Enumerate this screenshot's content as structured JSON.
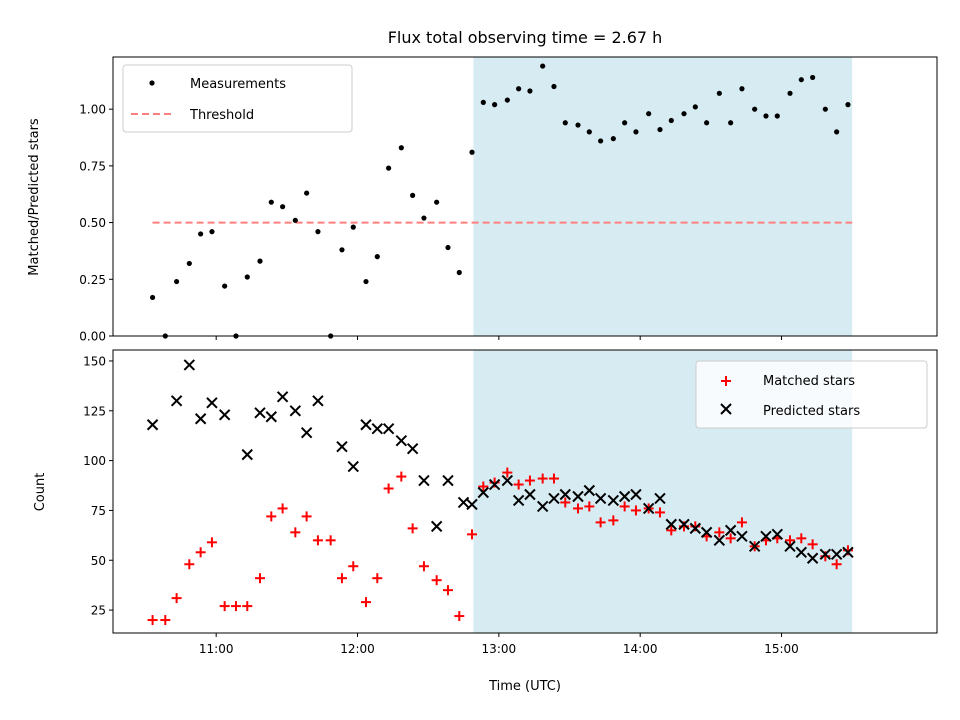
{
  "title": "Flux total observing time = 2.67 h",
  "colors": {
    "shade": "#add8e6",
    "red": "#ff0000",
    "black": "#000000",
    "threshold": "#ff7f7f"
  },
  "chart_data": [
    {
      "type": "scatter",
      "ylabel": "Matched/Predicted stars",
      "ylim": [
        0,
        1.23
      ],
      "yticks": [
        "0.00",
        "0.25",
        "0.50",
        "0.75",
        "1.00"
      ],
      "xlim": [
        10.27,
        16.1
      ],
      "shaded_region": [
        12.82,
        15.5
      ],
      "legend": {
        "placement": "top-left",
        "entries": [
          "Measurements",
          "Threshold"
        ]
      },
      "threshold": {
        "name": "Threshold",
        "x": [
          10.55,
          15.5
        ],
        "y": 0.5,
        "style": "dashed"
      },
      "series": [
        {
          "name": "Measurements",
          "marker": "dot",
          "points": [
            [
              10.55,
              0.17
            ],
            [
              10.64,
              0.0
            ],
            [
              10.72,
              0.24
            ],
            [
              10.81,
              0.32
            ],
            [
              10.89,
              0.45
            ],
            [
              10.97,
              0.46
            ],
            [
              11.06,
              0.22
            ],
            [
              11.14,
              0.0
            ],
            [
              11.22,
              0.26
            ],
            [
              11.31,
              0.33
            ],
            [
              11.39,
              0.59
            ],
            [
              11.47,
              0.57
            ],
            [
              11.56,
              0.51
            ],
            [
              11.64,
              0.63
            ],
            [
              11.72,
              0.46
            ],
            [
              11.81,
              0.0
            ],
            [
              11.89,
              0.38
            ],
            [
              11.97,
              0.48
            ],
            [
              12.06,
              0.24
            ],
            [
              12.14,
              0.35
            ],
            [
              12.22,
              0.74
            ],
            [
              12.31,
              0.83
            ],
            [
              12.39,
              0.62
            ],
            [
              12.47,
              0.52
            ],
            [
              12.56,
              0.59
            ],
            [
              12.64,
              0.39
            ],
            [
              12.72,
              0.28
            ],
            [
              12.81,
              0.81
            ],
            [
              12.89,
              1.03
            ],
            [
              12.97,
              1.02
            ],
            [
              13.06,
              1.04
            ],
            [
              13.14,
              1.09
            ],
            [
              13.22,
              1.08
            ],
            [
              13.31,
              1.19
            ],
            [
              13.39,
              1.1
            ],
            [
              13.47,
              0.94
            ],
            [
              13.56,
              0.93
            ],
            [
              13.64,
              0.9
            ],
            [
              13.72,
              0.86
            ],
            [
              13.81,
              0.87
            ],
            [
              13.89,
              0.94
            ],
            [
              13.97,
              0.9
            ],
            [
              14.06,
              0.98
            ],
            [
              14.14,
              0.91
            ],
            [
              14.22,
              0.95
            ],
            [
              14.31,
              0.98
            ],
            [
              14.39,
              1.01
            ],
            [
              14.47,
              0.94
            ],
            [
              14.56,
              1.07
            ],
            [
              14.64,
              0.94
            ],
            [
              14.72,
              1.09
            ],
            [
              14.81,
              1.0
            ],
            [
              14.89,
              0.97
            ],
            [
              14.97,
              0.97
            ],
            [
              15.06,
              1.07
            ],
            [
              15.14,
              1.13
            ],
            [
              15.22,
              1.14
            ],
            [
              15.31,
              1.0
            ],
            [
              15.39,
              0.9
            ],
            [
              15.47,
              1.02
            ]
          ]
        }
      ]
    },
    {
      "type": "scatter",
      "xlabel": "Time (UTC)",
      "ylabel": "Count",
      "ylim": [
        13.5,
        155.5
      ],
      "yticks": [
        "25",
        "50",
        "75",
        "100",
        "125",
        "150"
      ],
      "xlim": [
        10.27,
        16.1
      ],
      "xticks": [
        "11:00",
        "12:00",
        "13:00",
        "14:00",
        "15:00"
      ],
      "shaded_region": [
        12.82,
        15.5
      ],
      "legend": {
        "placement": "top-right",
        "entries": [
          "Matched stars",
          "Predicted stars"
        ]
      },
      "series": [
        {
          "name": "Matched stars",
          "marker": "plus",
          "points": [
            [
              10.55,
              20
            ],
            [
              10.64,
              20
            ],
            [
              10.72,
              31
            ],
            [
              10.81,
              48
            ],
            [
              10.89,
              54
            ],
            [
              10.97,
              59
            ],
            [
              11.06,
              27
            ],
            [
              11.14,
              27
            ],
            [
              11.22,
              27
            ],
            [
              11.31,
              41
            ],
            [
              11.39,
              72
            ],
            [
              11.47,
              76
            ],
            [
              11.56,
              64
            ],
            [
              11.64,
              72
            ],
            [
              11.72,
              60
            ],
            [
              11.81,
              60
            ],
            [
              11.89,
              41
            ],
            [
              11.97,
              47
            ],
            [
              12.06,
              29
            ],
            [
              12.14,
              41
            ],
            [
              12.22,
              86
            ],
            [
              12.31,
              92
            ],
            [
              12.39,
              66
            ],
            [
              12.47,
              47
            ],
            [
              12.56,
              40
            ],
            [
              12.64,
              35
            ],
            [
              12.72,
              22
            ],
            [
              12.81,
              63
            ],
            [
              12.89,
              87
            ],
            [
              12.97,
              89
            ],
            [
              13.06,
              94
            ],
            [
              13.14,
              88
            ],
            [
              13.22,
              90
            ],
            [
              13.31,
              91
            ],
            [
              13.39,
              91
            ],
            [
              13.47,
              79
            ],
            [
              13.56,
              76
            ],
            [
              13.64,
              77
            ],
            [
              13.72,
              69
            ],
            [
              13.81,
              70
            ],
            [
              13.89,
              77
            ],
            [
              13.97,
              75
            ],
            [
              14.06,
              76
            ],
            [
              14.14,
              74
            ],
            [
              14.22,
              65
            ],
            [
              14.31,
              67
            ],
            [
              14.39,
              67
            ],
            [
              14.47,
              62
            ],
            [
              14.56,
              64
            ],
            [
              14.64,
              61
            ],
            [
              14.72,
              69
            ],
            [
              14.81,
              57
            ],
            [
              14.89,
              60
            ],
            [
              14.97,
              61
            ],
            [
              15.06,
              60
            ],
            [
              15.14,
              61
            ],
            [
              15.22,
              58
            ],
            [
              15.31,
              52
            ],
            [
              15.39,
              48
            ],
            [
              15.47,
              55
            ]
          ]
        },
        {
          "name": "Predicted stars",
          "marker": "x",
          "points": [
            [
              10.55,
              118
            ],
            [
              10.72,
              130
            ],
            [
              10.81,
              148
            ],
            [
              10.89,
              121
            ],
            [
              10.97,
              129
            ],
            [
              11.06,
              123
            ],
            [
              11.22,
              103
            ],
            [
              11.31,
              124
            ],
            [
              11.39,
              122
            ],
            [
              11.47,
              132
            ],
            [
              11.56,
              125
            ],
            [
              11.64,
              114
            ],
            [
              11.72,
              130
            ],
            [
              11.89,
              107
            ],
            [
              11.97,
              97
            ],
            [
              12.06,
              118
            ],
            [
              12.14,
              116
            ],
            [
              12.22,
              116
            ],
            [
              12.31,
              110
            ],
            [
              12.39,
              106
            ],
            [
              12.47,
              90
            ],
            [
              12.56,
              67
            ],
            [
              12.64,
              90
            ],
            [
              12.75,
              79
            ],
            [
              12.81,
              78
            ],
            [
              12.89,
              84
            ],
            [
              12.97,
              88
            ],
            [
              13.06,
              90
            ],
            [
              13.14,
              80
            ],
            [
              13.22,
              83
            ],
            [
              13.31,
              77
            ],
            [
              13.39,
              81
            ],
            [
              13.47,
              83
            ],
            [
              13.56,
              82
            ],
            [
              13.64,
              85
            ],
            [
              13.72,
              81
            ],
            [
              13.81,
              80
            ],
            [
              13.89,
              82
            ],
            [
              13.97,
              83
            ],
            [
              14.06,
              76
            ],
            [
              14.14,
              81
            ],
            [
              14.22,
              68
            ],
            [
              14.31,
              68
            ],
            [
              14.39,
              66
            ],
            [
              14.47,
              64
            ],
            [
              14.56,
              60
            ],
            [
              14.64,
              65
            ],
            [
              14.72,
              62
            ],
            [
              14.81,
              57
            ],
            [
              14.89,
              62
            ],
            [
              14.97,
              63
            ],
            [
              15.06,
              57
            ],
            [
              15.14,
              54
            ],
            [
              15.22,
              51
            ],
            [
              15.31,
              53
            ],
            [
              15.39,
              53
            ],
            [
              15.47,
              54
            ]
          ]
        }
      ]
    }
  ]
}
